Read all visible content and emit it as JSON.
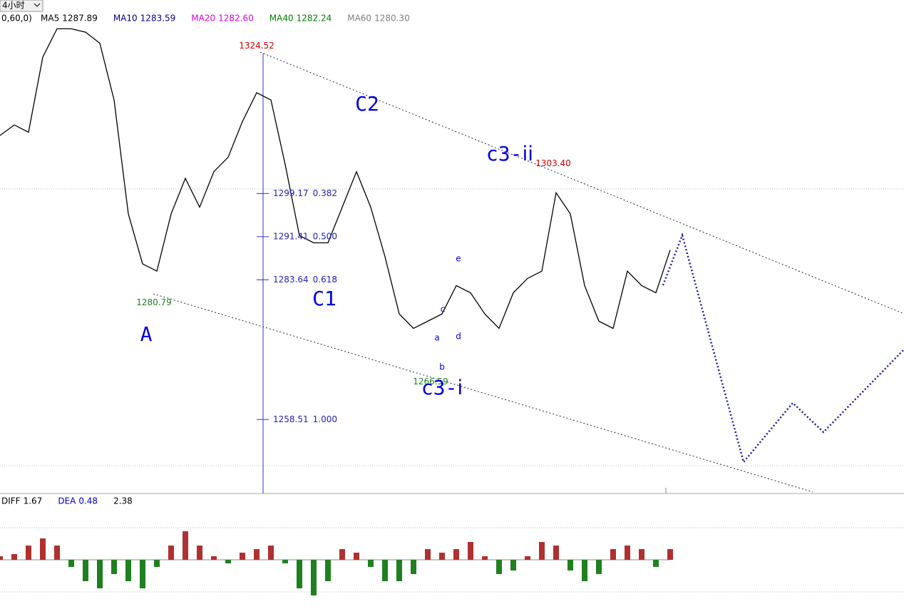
{
  "toolbar": {
    "period": "4小时"
  },
  "chart_data": {
    "type": "line",
    "legend_prefix": "0,60,0)",
    "indicators": [
      {
        "name": "MA5",
        "value": 1287.89,
        "color": "#000000"
      },
      {
        "name": "MA10",
        "value": 1283.59,
        "color": "#00008b"
      },
      {
        "name": "MA20",
        "value": {
          "value": 1282.6,
          "label": "1282.60"
        },
        "color": "#e000e0"
      },
      {
        "name": "MA40",
        "value": 1282.24,
        "color": "#008000"
      },
      {
        "name": "MA60",
        "value": {
          "value": 1280.3,
          "label": "1280.30"
        },
        "color": "#808080"
      }
    ],
    "xlim": [
      0,
      47
    ],
    "ylim": [
      1245.2,
      1331.8
    ],
    "series": [
      {
        "name": "MA5",
        "color": "#000000",
        "values": [
          1309.6,
          1311.5,
          1310.2,
          1323.7,
          1328.8,
          1328.8,
          1328.2,
          1326.2,
          1316.0,
          1295.5,
          1286.5,
          1285.2,
          1295.5,
          1301.9,
          1296.7,
          1303.1,
          1305.7,
          1312.1,
          1317.3,
          1316.0,
          1304.4,
          1291.6,
          1290.3,
          1290.3,
          1296.7,
          1303.1,
          1296.7,
          1287.8,
          1277.5,
          1274.9,
          1276.2,
          1277.5,
          1282.6,
          1281.3,
          1277.5,
          1274.9,
          1281.3,
          1283.9,
          1285.2,
          1299.3,
          1295.5,
          1282.6,
          1276.2,
          1274.9,
          1285.2,
          1282.6,
          1281.3,
          1289.0
        ]
      }
    ],
    "price_labels": [
      {
        "value": 1324.52,
        "x": 18,
        "color": "#d00000"
      },
      {
        "value": {
          "value": 1303.4,
          "label": "1303.40"
        },
        "x": 38.8,
        "color": "#d00000"
      },
      {
        "value": 1280.79,
        "x": 10.8,
        "color": "#208020"
      },
      {
        "value": 1266.59,
        "x": 30.2,
        "color": "#208020"
      }
    ],
    "fib_levels": [
      {
        "price": 1299.17,
        "ratio": 0.382
      },
      {
        "price": 1291.41,
        "ratio": {
          "value": 0.5,
          "label": "0.500"
        }
      },
      {
        "price": 1283.64,
        "ratio": 0.618
      },
      {
        "price": 1258.51,
        "ratio": {
          "value": 1,
          "label": "1.000"
        }
      }
    ],
    "wave_labels": [
      "A",
      "C1",
      "C2",
      "c3-ⅰ",
      "c3-ⅰⅰ"
    ],
    "sub_labels": [
      "e",
      "c",
      "d",
      "a",
      "b"
    ],
    "macd": {
      "indicators": [
        {
          "name": "DIFF",
          "value": 1.67,
          "color": "#000000"
        },
        {
          "name": "DEA",
          "value": 0.48,
          "color": "#0000c0"
        },
        {
          "name": "",
          "value": 2.38,
          "color": "#000000"
        }
      ],
      "ylim": [
        -7.6,
        9.3
      ],
      "values": [
        0.5,
        0.8,
        2,
        3,
        2,
        -1,
        -3,
        -4,
        -2,
        -3,
        -4,
        -1,
        2,
        4,
        2,
        0.5,
        -0.5,
        1,
        1.5,
        2,
        -0.5,
        -4,
        -5,
        -3,
        1.5,
        1,
        -1,
        -3,
        -3,
        -2,
        1.5,
        1,
        1.5,
        2.5,
        0.5,
        -2,
        -1.5,
        0.5,
        2.5,
        2,
        -1.5,
        -3,
        -2,
        1.5,
        2,
        1.5,
        -1,
        1.5
      ]
    }
  }
}
